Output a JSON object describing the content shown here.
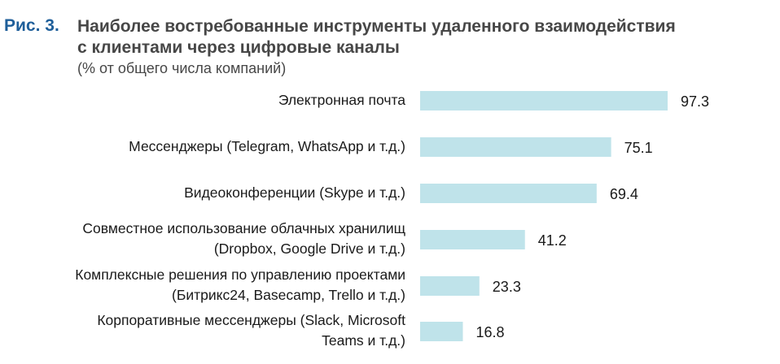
{
  "figure": {
    "label": "Рис. 3.",
    "title_line1": "Наиболее востребованные инструменты удаленного взаимодействия",
    "title_line2": "с клиентами через цифровые каналы",
    "subtitle": "(% от общего числа компаний)"
  },
  "chart_data": {
    "type": "bar",
    "orientation": "horizontal",
    "title": "Наиболее востребованные инструменты удаленного взаимодействия с клиентами через цифровые каналы",
    "subtitle": "(% от общего числа компаний)",
    "categories": [
      [
        "Электронная почта"
      ],
      [
        "Мессенджеры (Telegram, WhatsApp и т.д.)"
      ],
      [
        "Видеоконференции (Skype и т.д.)"
      ],
      [
        "Совместное использование облачных хранилищ",
        "(Dropbox, Google Drive и т.д.)"
      ],
      [
        "Комплексные решения по управлению проектами",
        "(Битрикс24, Basecamp, Trello и т.д.)"
      ],
      [
        "Корпоративные мессенджеры (Slack, Microsoft",
        "Teams и т.д.)"
      ]
    ],
    "values": [
      97.3,
      75.1,
      69.4,
      41.2,
      23.3,
      16.8
    ],
    "value_labels": [
      "97.3",
      "75.1",
      "69.4",
      "41.2",
      "23.3",
      "16.8"
    ],
    "xlim": [
      0,
      100
    ],
    "grid": false,
    "legend": "none",
    "bar_color": "#bfe3ea"
  }
}
